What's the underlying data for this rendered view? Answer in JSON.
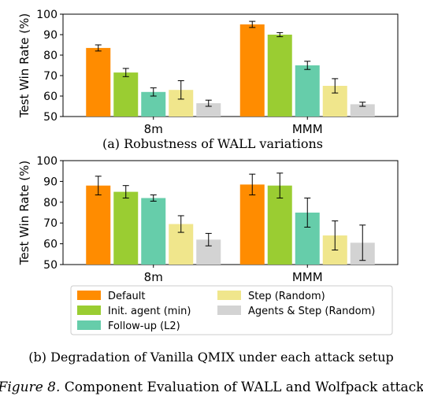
{
  "colors": {
    "Default": "#ff8c00",
    "Init. agent (min)": "#9acd32",
    "Follow-up (L2)": "#66cdaa",
    "Step (Random)": "#f0e68c",
    "Agents & Step (Random)": "#d3d3d3"
  },
  "chart_data": [
    {
      "type": "bar",
      "ylabel": "Test Win Rate (%)",
      "ylim": [
        50,
        100
      ],
      "yticks": [
        50,
        60,
        70,
        80,
        90,
        100
      ],
      "categories": [
        "8m",
        "MMM"
      ],
      "caption": "(a) Robustness of WALL variations",
      "series": [
        {
          "name": "Default",
          "values": [
            83.5,
            95.0
          ],
          "errors": [
            1.5,
            1.5
          ]
        },
        {
          "name": "Init. agent (min)",
          "values": [
            71.5,
            90.0
          ],
          "errors": [
            2.0,
            1.0
          ]
        },
        {
          "name": "Follow-up (L2)",
          "values": [
            62.0,
            75.0
          ],
          "errors": [
            2.0,
            2.0
          ]
        },
        {
          "name": "Step (Random)",
          "values": [
            63.0,
            65.0
          ],
          "errors": [
            4.5,
            3.5
          ]
        },
        {
          "name": "Agents & Step (Random)",
          "values": [
            56.5,
            56.0
          ],
          "errors": [
            1.5,
            1.0
          ]
        }
      ]
    },
    {
      "type": "bar",
      "ylabel": "Test Win Rate (%)",
      "ylim": [
        50,
        100
      ],
      "yticks": [
        50,
        60,
        70,
        80,
        90,
        100
      ],
      "categories": [
        "8m",
        "MMM"
      ],
      "caption": "(b) Degradation of Vanilla QMIX under each attack setup",
      "legend": "bottom",
      "series": [
        {
          "name": "Default",
          "values": [
            88.0,
            88.5
          ],
          "errors": [
            4.5,
            5.0
          ]
        },
        {
          "name": "Init. agent (min)",
          "values": [
            85.0,
            88.0
          ],
          "errors": [
            3.0,
            6.0
          ]
        },
        {
          "name": "Follow-up (L2)",
          "values": [
            82.0,
            75.0
          ],
          "errors": [
            1.5,
            7.0
          ]
        },
        {
          "name": "Step (Random)",
          "values": [
            69.5,
            64.0
          ],
          "errors": [
            4.0,
            7.0
          ]
        },
        {
          "name": "Agents & Step (Random)",
          "values": [
            62.0,
            60.5
          ],
          "errors": [
            3.0,
            8.5
          ]
        }
      ]
    }
  ],
  "legend_items": [
    "Default",
    "Init. agent (min)",
    "Follow-up (L2)",
    "Step (Random)",
    "Agents & Step (Random)"
  ],
  "figure_caption": {
    "label": "Figure 8.",
    "text": " Component Evaluation of WALL and Wolfpack attack"
  }
}
